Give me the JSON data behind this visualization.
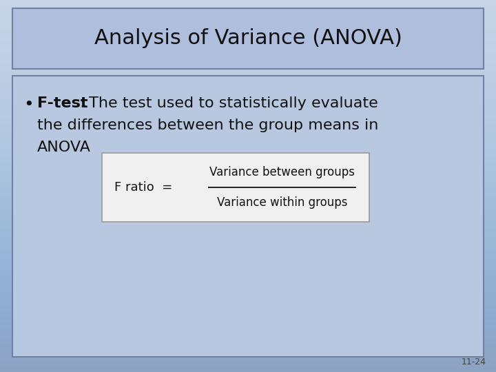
{
  "title": "Analysis of Variance (ANOVA)",
  "bullet_bold": "F-test",
  "bullet_colon": ":",
  "bullet_rest_line1": " The test used to statistically evaluate",
  "bullet_line2": "the differences between the group means in",
  "bullet_line3": "ANOVA",
  "formula_label": "F ratio  =",
  "formula_numerator": "Variance between groups",
  "formula_denominator": "Variance within groups",
  "footer": "11-24",
  "slide_bg": "#b8c8e0",
  "title_box_bg": "#b0bedd",
  "title_box_edge": "#7080a0",
  "content_box_bg": "#b8c8e0",
  "content_box_edge": "#7080a0",
  "formula_box_bg": "#f0f0f0",
  "formula_box_edge": "#999999",
  "text_color": "#111111",
  "footer_color": "#444444",
  "title_fontsize": 22,
  "bullet_fontsize": 16,
  "formula_fontsize": 13,
  "footer_fontsize": 9
}
